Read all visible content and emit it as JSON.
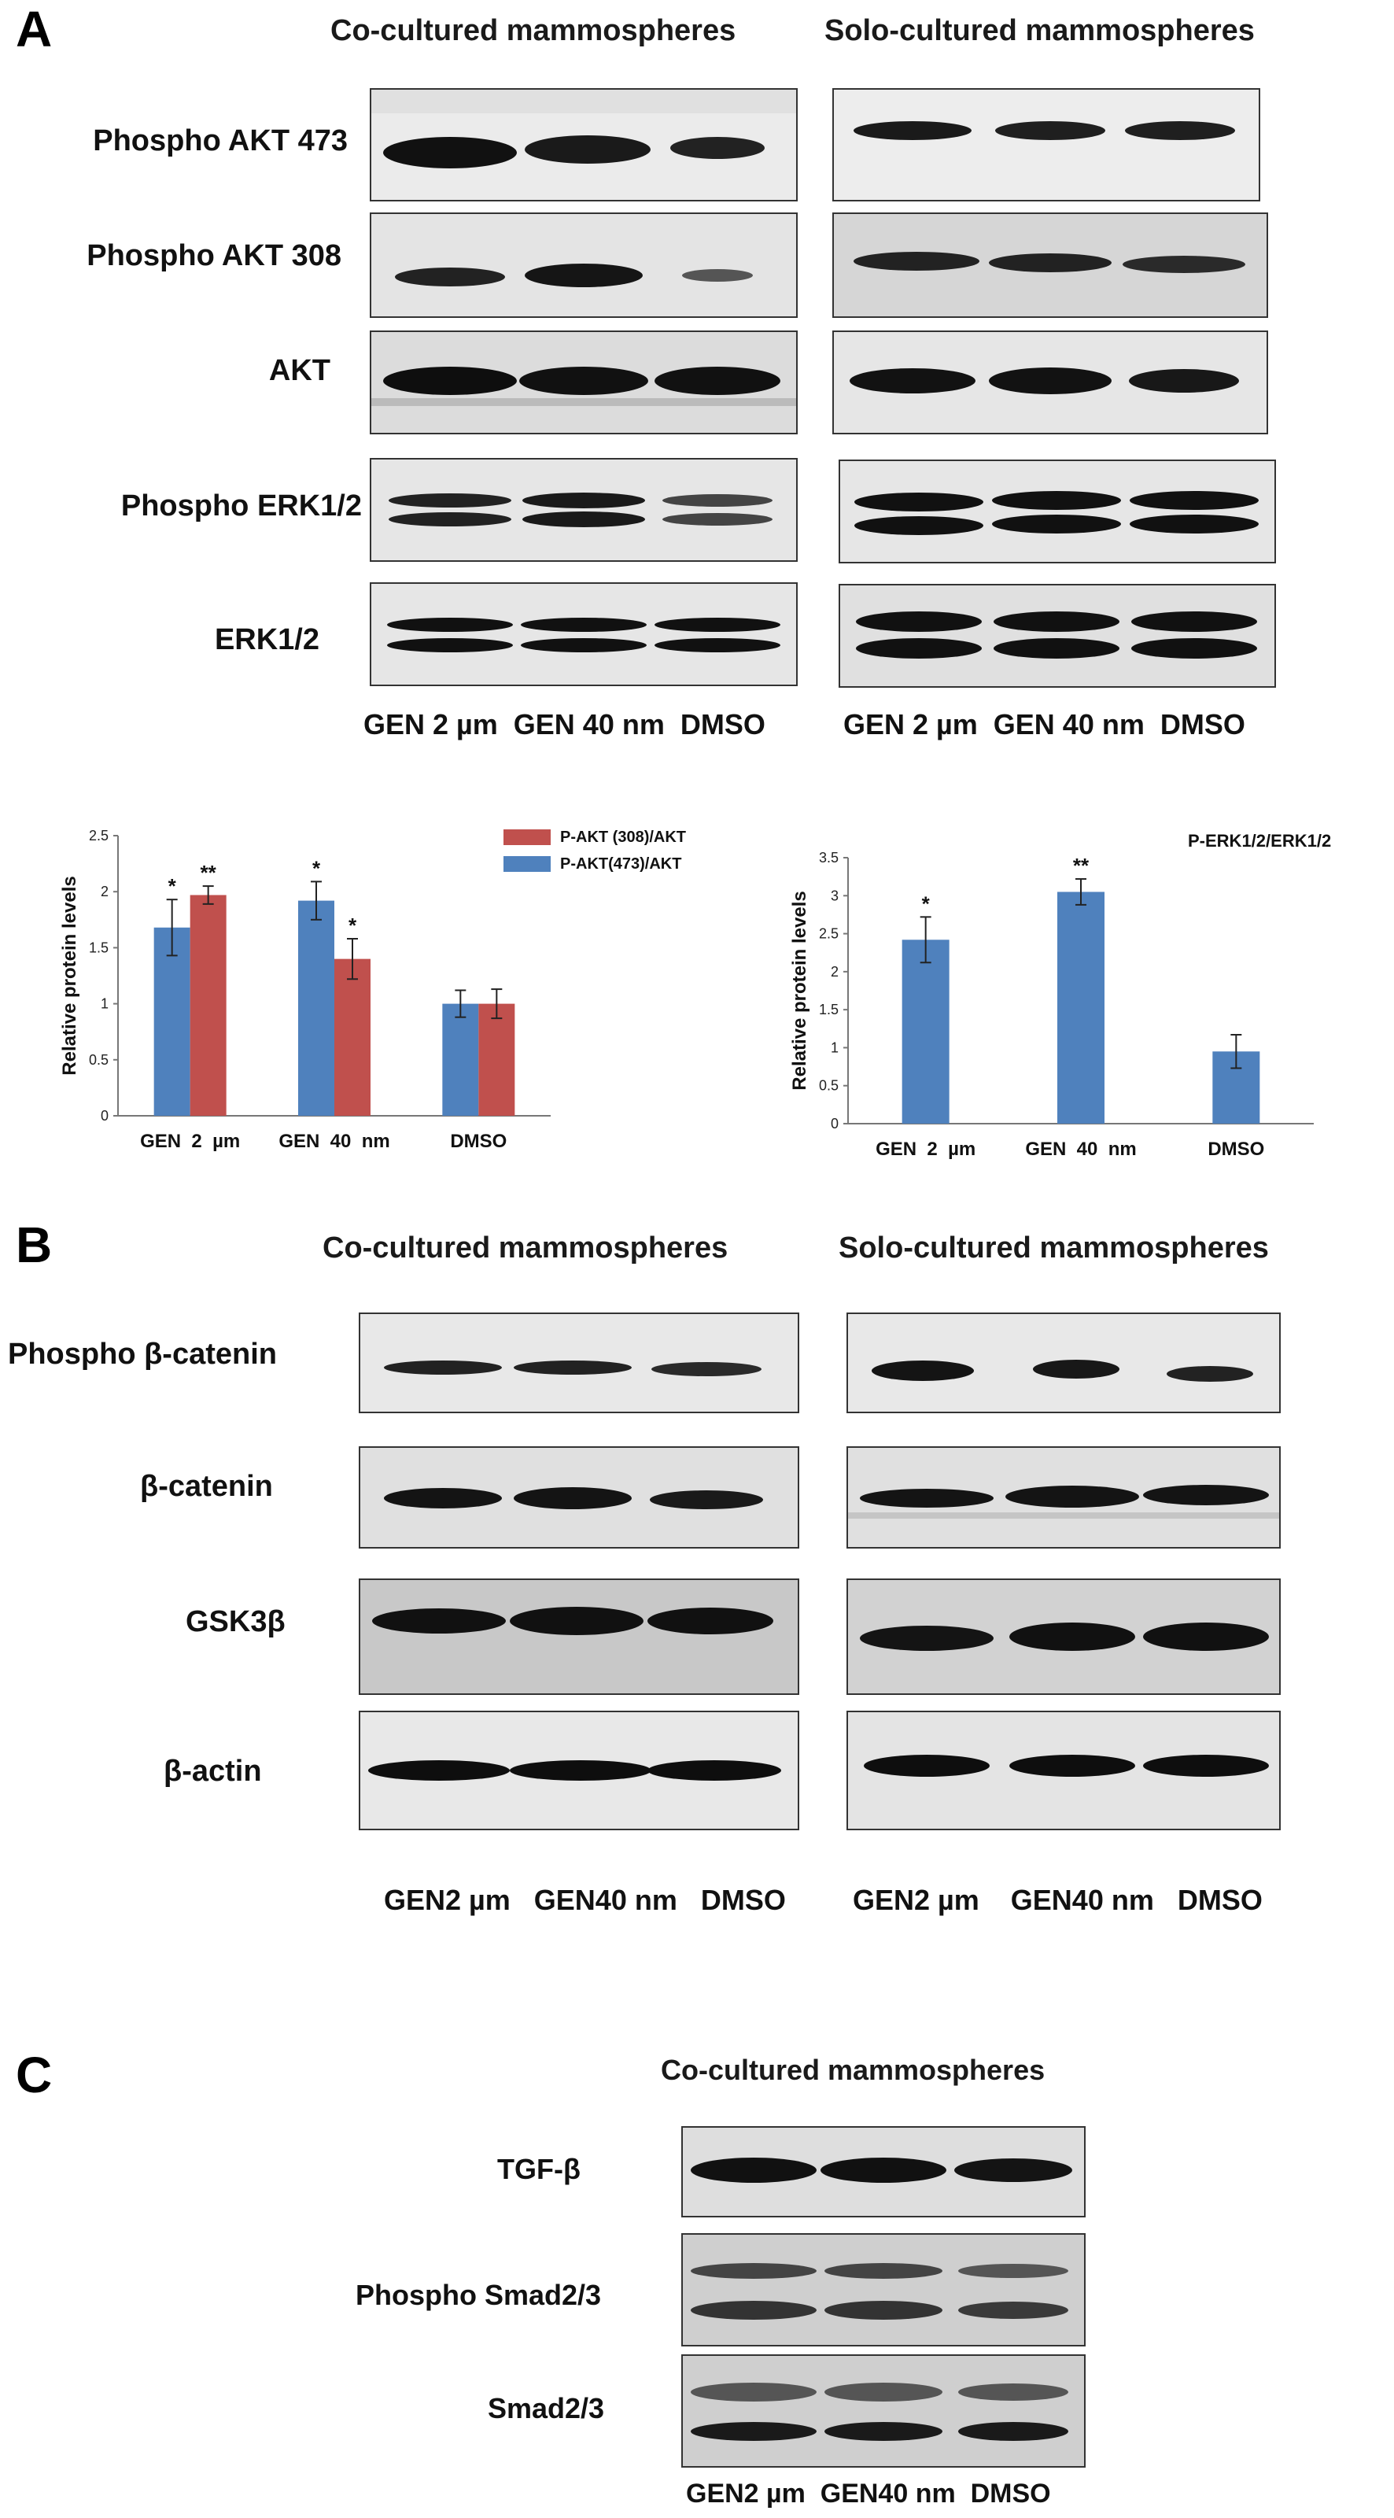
{
  "figure": {
    "panel_a": {
      "letter": "A",
      "left_title": "Co-cultured mammospheres",
      "right_title": "Solo-cultured mammospheres",
      "rows": [
        "Phospho AKT 473",
        "Phospho AKT 308",
        "AKT",
        "Phospho ERK1/2",
        "ERK1/2"
      ],
      "lanes_left": "GEN 2 µm  GEN 40 nm  DMSO",
      "lanes_right": "GEN 2 µm  GEN 40 nm  DMSO"
    },
    "panel_b": {
      "letter": "B",
      "left_title": "Co-cultured mammospheres",
      "right_title": "Solo-cultured mammospheres",
      "rows": [
        "Phospho β-catenin",
        "β-catenin",
        "GSK3β",
        "β-actin"
      ],
      "lanes_left": "GEN2 µm   GEN40 nm   DMSO",
      "lanes_right": "GEN2 µm    GEN40 nm   DMSO"
    },
    "panel_c": {
      "letter": "C",
      "title": "Co-cultured mammospheres",
      "rows": [
        "TGF-β",
        "Phospho Smad2/3",
        "Smad2/3"
      ],
      "lanes": "GEN2 µm  GEN40 nm  DMSO"
    }
  },
  "chart_data": [
    {
      "type": "bar",
      "categories": [
        "GEN  2  µm",
        "GEN  40  nm",
        "DMSO"
      ],
      "series": [
        {
          "name": "P-AKT(473)/AKT",
          "values": [
            1.68,
            1.92,
            1.0
          ],
          "errors": [
            0.25,
            0.17,
            0.12
          ],
          "color": "#4f81bd"
        },
        {
          "name": "P-AKT (308)/AKT",
          "values": [
            1.97,
            1.4,
            1.0
          ],
          "errors": [
            0.08,
            0.18,
            0.13
          ],
          "color": "#c0504d"
        }
      ],
      "significance": [
        [
          "*",
          "**"
        ],
        [
          "*",
          "*"
        ],
        [
          "",
          ""
        ]
      ],
      "ylabel": "Relative protein levels",
      "ylim": [
        0,
        2.5
      ],
      "yticks": [
        "0",
        "0.5",
        "1",
        "1.5",
        "2",
        "2.5"
      ],
      "legend": "top-right"
    },
    {
      "type": "bar",
      "categories": [
        "GEN  2  µm",
        "GEN  40  nm",
        "DMSO"
      ],
      "series": [
        {
          "name": "P-ERK1/2/ERK1/2",
          "values": [
            2.42,
            3.05,
            0.95
          ],
          "errors": [
            0.3,
            0.17,
            0.22
          ],
          "color": "#4f81bd"
        }
      ],
      "significance": [
        [
          "*"
        ],
        [
          "**"
        ],
        [
          ""
        ]
      ],
      "ylabel": "Relative protein levels",
      "ylim": [
        0,
        3.5
      ],
      "yticks": [
        "0",
        "0.5",
        "1",
        "1.5",
        "2",
        "2.5",
        "3",
        "3.5"
      ],
      "legend": "top-right"
    }
  ]
}
